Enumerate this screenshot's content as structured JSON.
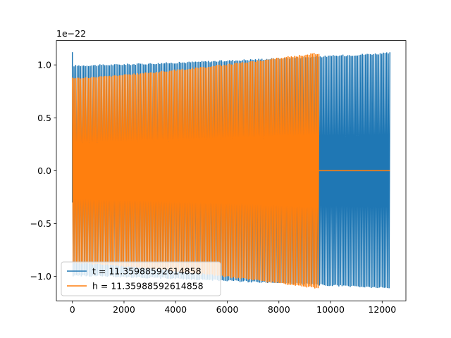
{
  "chart_data": {
    "type": "line",
    "title": "",
    "xlabel": "",
    "ylabel": "",
    "y_scale_label": "1e−22",
    "xlim": [
      -620,
      12920
    ],
    "ylim": [
      -1.23,
      1.23
    ],
    "x_ticks": [
      0,
      2000,
      4000,
      6000,
      8000,
      10000,
      12000
    ],
    "x_tick_labels": [
      "0",
      "2000",
      "4000",
      "6000",
      "8000",
      "10000",
      "12000"
    ],
    "y_ticks": [
      -1.0,
      -0.5,
      0.0,
      0.5,
      1.0
    ],
    "y_tick_labels": [
      "−1.0",
      "−0.5",
      "0.0",
      "0.5",
      "1.0"
    ],
    "grid": false,
    "legend": {
      "position": "lower-left"
    },
    "series": [
      {
        "name": "t = 11.35988592614858",
        "color": "#1f77b4",
        "x_start": 0,
        "x_end": 12300,
        "amplitude_start": 1.0,
        "amplitude_end": 1.12,
        "initial_spike": 1.12,
        "style": "dense-oscillation"
      },
      {
        "name": "h = 11.35988592614858",
        "color": "#ff7f0e",
        "x_start": 0,
        "x_end": 9550,
        "amplitude_start": 0.88,
        "amplitude_end": 1.12,
        "tail_x_end": 12300,
        "tail_value": 0.0,
        "style": "dense-oscillation"
      }
    ]
  }
}
